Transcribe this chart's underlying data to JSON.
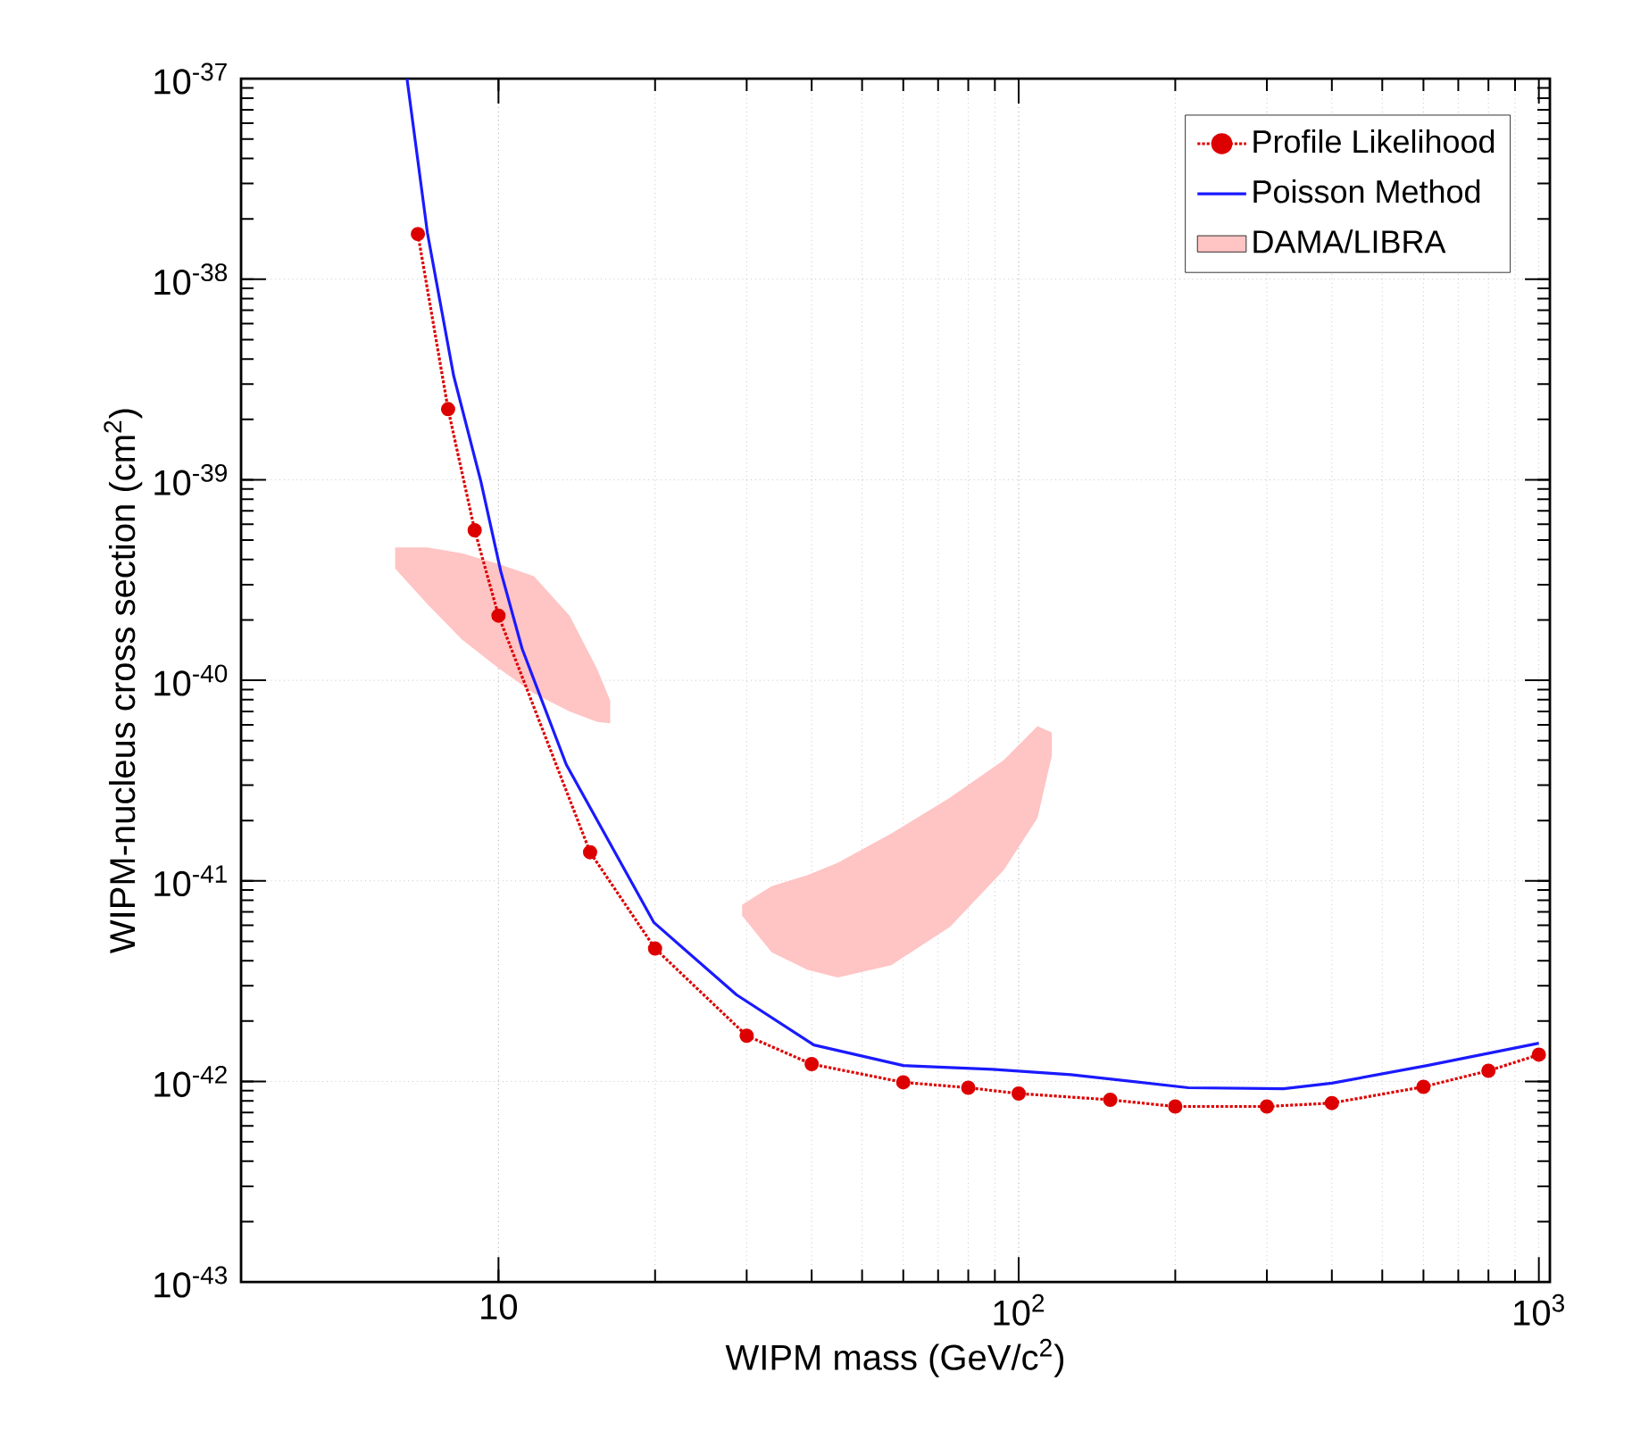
{
  "chart_data": {
    "type": "line",
    "xlabel": "WIPM mass (GeV/c$^{2}$)",
    "ylabel": "WIPM-nucleus cross section (cm$^{2}$)",
    "log": "xy",
    "grid": true,
    "legend": "top right",
    "xlim": [
      3.2,
      1050
    ],
    "ylim": [
      1e-43,
      1e-37
    ],
    "xticks": [
      10,
      {
        "value": 100,
        "label": "10$^{2}$"
      },
      {
        "value": 1000,
        "label": "10$^{3}$"
      }
    ],
    "yticks": [
      {
        "value": 1e-43,
        "label": "10$^{-43}$"
      },
      {
        "value": 1e-42,
        "label": "10$^{-42}$"
      },
      {
        "value": 1e-41,
        "label": "10$^{-41}$"
      },
      {
        "value": 1e-40,
        "label": "10$^{-40}$"
      },
      {
        "value": 1e-39,
        "label": "10$^{-39}$"
      },
      {
        "value": 1e-38,
        "label": "10$^{-38}$"
      },
      {
        "value": 1e-37,
        "label": "10$^{-37}$"
      }
    ],
    "series": [
      {
        "name": "Profile Likelihood",
        "color": "#dd0000",
        "marker": "circle",
        "line_style": "dotted",
        "x": [
          7,
          8,
          9,
          10,
          15,
          20,
          30,
          40,
          60,
          80,
          100,
          150,
          200,
          300,
          400,
          600,
          800,
          1000
        ],
        "values": [
          1.68e-38,
          2.25e-39,
          5.6e-40,
          2.1e-40,
          1.39e-41,
          4.6e-42,
          1.69e-42,
          1.22e-42,
          9.9e-43,
          9.3e-43,
          8.7e-43,
          8.1e-43,
          7.5e-43,
          7.5e-43,
          7.8e-43,
          9.4e-43,
          1.13e-42,
          1.36e-42
        ]
      },
      {
        "name": "Poisson Method",
        "color": "#1a1aff",
        "line_style": "solid",
        "x": [
          6.67,
          7.3,
          8.2,
          9.25,
          10.1,
          11.1,
          13.5,
          19.9,
          28.7,
          40.4,
          60,
          89,
          126,
          212,
          323,
          400,
          610,
          1000
        ],
        "values": [
          1e-37,
          1.71e-38,
          3.3e-39,
          9.8e-40,
          3.5e-40,
          1.44e-40,
          3.8e-41,
          6.2e-42,
          2.7e-42,
          1.52e-42,
          1.2e-42,
          1.15e-42,
          1.08e-42,
          9.3e-43,
          9.2e-43,
          9.8e-43,
          1.2e-42,
          1.55e-42
        ]
      },
      {
        "name": "DAMA/LIBRA",
        "type": "area",
        "color": "#ffc4c4",
        "x": [
          6.33,
          7.3,
          8.5,
          10,
          11.7,
          13.7,
          15.5,
          16.4,
          16.4,
          15.5,
          13.7,
          11.7,
          10,
          8.5,
          7.3,
          6.33
        ],
        "values": [
          4.6e-40,
          4.6e-40,
          4.3e-40,
          3.8e-40,
          3.3e-40,
          2.1e-40,
          1.13e-40,
          7.9e-41,
          6.1e-41,
          6.2e-41,
          7e-41,
          8.6e-41,
          1.15e-40,
          1.6e-40,
          2.4e-40,
          3.6e-40
        ]
      },
      {
        "type": "area",
        "color": "#ffc4c4",
        "x": [
          29.4,
          33.5,
          39.3,
          44.9,
          56.9,
          73.8,
          93.6,
          108.7,
          115.8,
          115.8,
          108.7,
          93.6,
          73.8,
          56.9,
          44.9,
          39.3,
          33.5,
          29.4
        ],
        "values": [
          7.6e-42,
          9.4e-42,
          1.07e-41,
          1.23e-41,
          1.72e-41,
          2.6e-41,
          4e-41,
          5.9e-41,
          5.5e-41,
          4.2e-41,
          2.06e-41,
          1.13e-41,
          5.9e-42,
          3.8e-42,
          3.3e-42,
          3.6e-42,
          4.4e-42,
          6.7e-42
        ]
      }
    ]
  }
}
